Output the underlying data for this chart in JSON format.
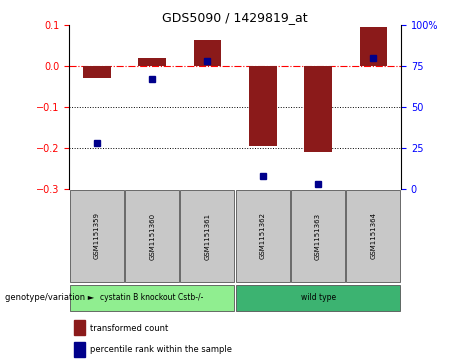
{
  "title": "GDS5090 / 1429819_at",
  "samples": [
    "GSM1151359",
    "GSM1151360",
    "GSM1151361",
    "GSM1151362",
    "GSM1151363",
    "GSM1151364"
  ],
  "bar_values": [
    -0.03,
    0.02,
    0.065,
    -0.195,
    -0.21,
    0.095
  ],
  "percentile_values": [
    28,
    67,
    78,
    8,
    3,
    80
  ],
  "ylim_left": [
    -0.3,
    0.1
  ],
  "ylim_right": [
    0,
    100
  ],
  "yticks_left": [
    -0.3,
    -0.2,
    -0.1,
    0.0,
    0.1
  ],
  "yticks_right": [
    0,
    25,
    50,
    75,
    100
  ],
  "bar_color": "#8B1A1A",
  "dot_color": "#00008B",
  "dotted_lines": [
    -0.1,
    -0.2
  ],
  "legend_labels": [
    "transformed count",
    "percentile rank within the sample"
  ],
  "genotype_label": "genotype/variation",
  "group1_label": "cystatin B knockout Cstb-/-",
  "group2_label": "wild type",
  "group1_color": "#90EE90",
  "group2_color": "#3CB371",
  "sample_box_color": "#C8C8C8"
}
